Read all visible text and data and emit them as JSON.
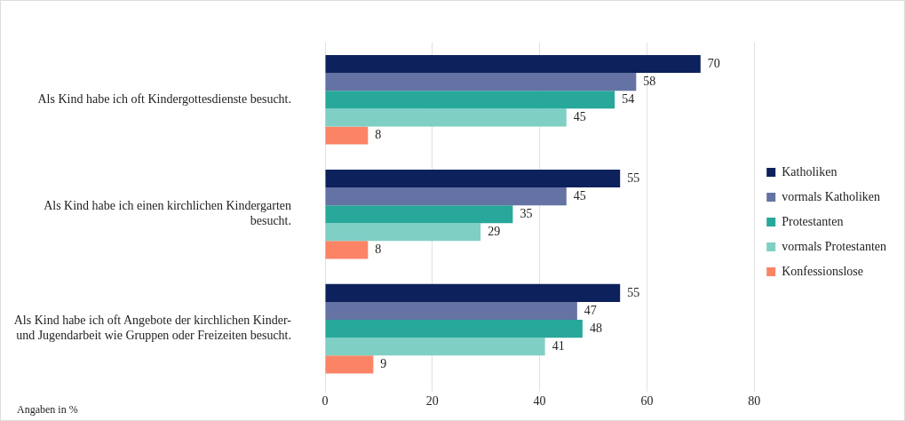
{
  "chart_data": {
    "type": "bar",
    "orientation": "horizontal",
    "categories": [
      "Als Kind habe ich oft Kindergottesdienste besucht.",
      "Als Kind habe ich einen kirchlichen Kindergarten besucht.",
      "Als Kind habe ich oft Angebote der kirchlichen Kinder- und Jugendarbeit wie Gruppen oder Freizeiten besucht."
    ],
    "series": [
      {
        "name": "Katholiken",
        "color": "#0d215c",
        "values": [
          70,
          55,
          55
        ]
      },
      {
        "name": "vormals Katholiken",
        "color": "#6473a3",
        "values": [
          58,
          45,
          47
        ]
      },
      {
        "name": "Protestanten",
        "color": "#27a89a",
        "values": [
          54,
          35,
          48
        ]
      },
      {
        "name": "vormals Protestanten",
        "color": "#7fcfc4",
        "values": [
          45,
          29,
          41
        ]
      },
      {
        "name": "Konfessionslose",
        "color": "#fb8466",
        "values": [
          8,
          8,
          9
        ]
      }
    ],
    "xlim": [
      0,
      80
    ],
    "xticks": [
      0,
      20,
      40,
      60,
      80
    ],
    "grid": "x",
    "legend": "right",
    "data_labels": true,
    "annotations": [
      "Angaben in %"
    ]
  }
}
